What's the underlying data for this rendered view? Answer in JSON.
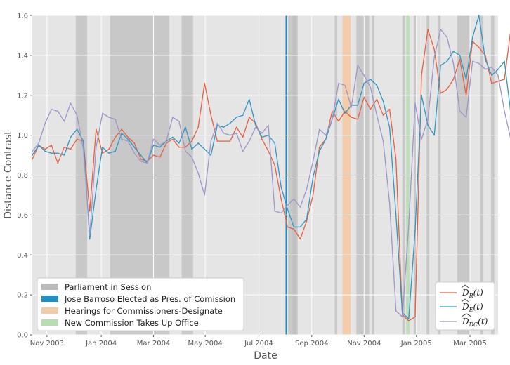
{
  "chart_data": {
    "type": "line",
    "xlabel": "Date",
    "ylabel": "Distance Contrast",
    "ylim": [
      0.0,
      1.6
    ],
    "xlim": [
      0,
      73
    ],
    "grid": true,
    "x_tick_labels": [
      "Nov 2003",
      "Jan 2004",
      "Mar 2004",
      "May 2004",
      "Jul 2004",
      "Sep 2004",
      "Nov 2004",
      "Jan 2005",
      "Mar 2005"
    ],
    "x_tick_positions": [
      2.3,
      10.8,
      19.0,
      27.1,
      35.5,
      43.8,
      52.0,
      60.2,
      68.6
    ],
    "y_tick_labels": [
      "0.0",
      "0.2",
      "0.4",
      "0.6",
      "0.8",
      "1.0",
      "1.2",
      "1.4",
      "1.6"
    ],
    "y_ticks": [
      0.0,
      0.2,
      0.4,
      0.6,
      0.8,
      1.0,
      1.2,
      1.4,
      1.6
    ],
    "series": [
      {
        "name": "D_R",
        "label_base": "D",
        "label_sub": "R",
        "label_arg": "(t)",
        "color": "#e8603f",
        "values": [
          0.88,
          0.95,
          0.93,
          0.95,
          0.86,
          0.94,
          0.93,
          0.98,
          0.97,
          0.62,
          1.03,
          0.91,
          0.93,
          0.99,
          1.03,
          0.99,
          0.96,
          0.88,
          0.87,
          0.9,
          0.89,
          0.96,
          0.98,
          0.94,
          0.94,
          0.97,
          1.04,
          1.26,
          1.1,
          0.97,
          0.97,
          0.97,
          1.04,
          0.99,
          1.09,
          1.06,
          0.98,
          0.92,
          0.85,
          0.68,
          0.54,
          0.53,
          0.48,
          0.57,
          0.7,
          0.94,
          0.98,
          1.12,
          1.07,
          1.12,
          1.09,
          1.08,
          1.19,
          1.13,
          1.18,
          1.1,
          1.13,
          0.88,
          0.1,
          0.07,
          0.09,
          1.3,
          1.53,
          1.43,
          1.21,
          1.23,
          1.28,
          1.38,
          1.2,
          1.47,
          1.44,
          1.4,
          1.26,
          1.27,
          1.28,
          1.53
        ]
      },
      {
        "name": "D_E",
        "label_base": "D",
        "label_sub": "E",
        "label_arg": "(t)",
        "color": "#2e97c4",
        "values": [
          0.9,
          0.95,
          0.92,
          0.91,
          0.91,
          0.9,
          0.99,
          1.03,
          0.97,
          0.48,
          0.73,
          0.94,
          0.91,
          0.92,
          1.01,
          0.98,
          0.94,
          0.9,
          0.86,
          0.95,
          0.94,
          0.97,
          0.99,
          0.96,
          1.04,
          0.93,
          0.96,
          0.93,
          0.9,
          1.05,
          1.04,
          1.06,
          1.09,
          1.1,
          1.18,
          1.05,
          0.99,
          1.0,
          0.96,
          0.74,
          0.63,
          0.54,
          0.54,
          0.58,
          0.79,
          0.92,
          0.98,
          1.08,
          1.18,
          1.11,
          1.15,
          1.15,
          1.26,
          1.28,
          1.25,
          1.17,
          1.04,
          0.6,
          0.11,
          0.08,
          0.52,
          1.2,
          1.05,
          1.0,
          1.35,
          1.37,
          1.42,
          1.4,
          1.28,
          1.49,
          1.6,
          1.38,
          1.3,
          1.33,
          1.37,
          1.11
        ]
      },
      {
        "name": "D_DC",
        "label_base": "D",
        "label_sub": "DC",
        "label_arg": "(t)",
        "color": "#9d97c9",
        "values": [
          0.92,
          0.96,
          1.06,
          1.13,
          1.12,
          1.07,
          1.16,
          1.1,
          0.93,
          0.5,
          0.94,
          1.11,
          1.09,
          1.08,
          0.98,
          0.97,
          0.91,
          0.87,
          0.86,
          0.98,
          0.95,
          0.97,
          1.09,
          1.07,
          0.92,
          0.89,
          0.81,
          0.7,
          0.97,
          1.06,
          1.01,
          1.0,
          1.01,
          0.92,
          0.97,
          1.04,
          1.01,
          1.05,
          0.62,
          0.61,
          0.65,
          0.68,
          0.64,
          0.73,
          0.87,
          1.03,
          1.0,
          1.08,
          1.26,
          1.25,
          1.14,
          1.35,
          1.3,
          1.24,
          1.1,
          0.97,
          0.66,
          0.12,
          0.09,
          0.55,
          1.16,
          0.98,
          1.08,
          1.39,
          1.53,
          1.49,
          1.36,
          1.12,
          1.09,
          1.37,
          1.36,
          1.33,
          1.34,
          1.3,
          1.12,
          0.98
        ]
      }
    ],
    "sessions": [
      [
        6.8,
        8.6
      ],
      [
        12.2,
        21.5
      ],
      [
        23.4,
        25.2
      ],
      [
        40.1,
        41.6
      ],
      [
        40.8,
        41.4
      ],
      [
        47.4,
        47.8
      ],
      [
        50.8,
        52.8
      ],
      [
        53.2,
        53.6
      ],
      [
        58.0,
        58.4
      ],
      [
        59.8,
        60.3
      ],
      [
        61.8,
        62.2
      ],
      [
        63.6,
        64.0
      ],
      [
        66.6,
        68.6
      ],
      [
        70.2,
        70.7
      ],
      [
        71.9,
        72.4
      ]
    ],
    "barroso_x": 39.8,
    "hearings": [
      48.6,
      49.9
    ],
    "new_commission": [
      58.6,
      59.1
    ],
    "legend_events": [
      {
        "label": "Parliament in Session",
        "color": "#bcbcbc"
      },
      {
        "label": "Jose Barroso Elected as Pres. of Comission",
        "color": "#1f8fc5"
      },
      {
        "label": "Hearings for Commissioners-Designate",
        "color": "#f3cba8"
      },
      {
        "label": "New Commission Takes Up Office",
        "color": "#b8dcb4"
      }
    ],
    "legend_placement_events": "lower-left",
    "legend_placement_series": "lower-right"
  }
}
